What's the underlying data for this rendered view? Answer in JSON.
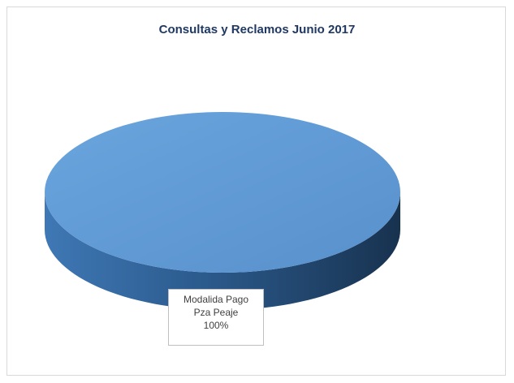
{
  "chart_data": {
    "type": "pie",
    "title": "Consultas y Reclamos Junio 2017",
    "slices": [
      {
        "label": "Modalida Pago Pza Peaje",
        "label_lines": [
          "Modalida Pago",
          "Pza Peaje"
        ],
        "value": 100,
        "value_label": "100%",
        "color": "#5b9bd5"
      }
    ],
    "style": "3d",
    "legend": "none"
  }
}
